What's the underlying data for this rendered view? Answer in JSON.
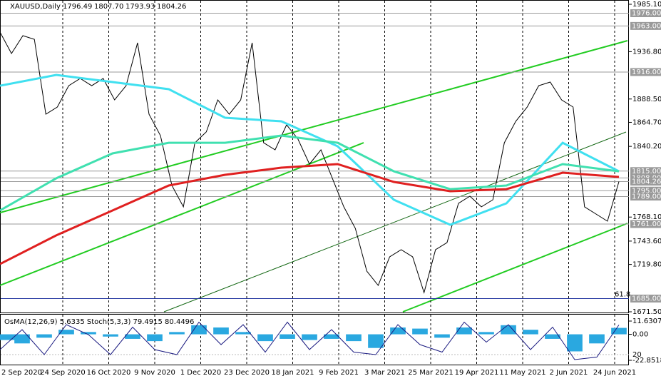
{
  "chart_data": [
    {
      "type": "line",
      "symbol": "XAUUSD,Daily",
      "ohlc": [
        {
          "value": 1796.49,
          "label": "1796.49"
        },
        {
          "value": 1807.7,
          "label": "1807.70"
        },
        {
          "value": 1793.93,
          "label": "1793.93"
        },
        {
          "value": 1804.26,
          "label": "1804.26"
        }
      ],
      "xtick_labels": [
        "2 Sep 2020",
        "24 Sep 2020",
        "16 Oct 2020",
        "9 Nov 2020",
        "1 Dec 2020",
        "23 Dec 2020",
        "18 Jan 2021",
        "9 Feb 2021",
        "3 Mar 2021",
        "25 Mar 2021",
        "19 Apr 2021",
        "11 May 2021",
        "2 Jun 2021",
        "24 Jun 2021"
      ],
      "series": [
        {
          "color": "#000000",
          "values": [
            1956.7,
            1934.9,
            1953.1,
            1949.4,
            1873.0,
            1880.3,
            1902.1,
            1909.4,
            1902.1,
            1909.4,
            1887.6,
            1902.1,
            1945.8,
            1873.0,
            1851.2,
            1800.3,
            1778.5,
            1843.9,
            1854.9,
            1887.6,
            1873.0,
            1887.6,
            1945.8,
            1843.9,
            1836.7,
            1862.1,
            1847.6,
            1822.1,
            1836.7,
            1807.6,
            1778.5,
            1756.6,
            1713.0,
            1698.4,
            1727.5,
            1734.8,
            1727.5,
            1691.1,
            1734.8,
            1742.1,
            1782.1,
            1789.4,
            1778.5,
            1785.7,
            1843.9,
            1865.8,
            1880.3,
            1902.1,
            1905.8,
            1887.6,
            1880.3,
            1778.5,
            1771.2,
            1763.9,
            1804.26
          ]
        },
        {
          "color": "#40e0f0",
          "values": [
            1902.1,
            1913.1,
            1905.8,
            1898.5,
            1869.4,
            1865.8,
            1840.3,
            1785.7,
            1760.3,
            1782.1,
            1843.9,
            1814.8
          ]
        },
        {
          "color": "#40e0b0",
          "values": [
            1774.8,
            1807.6,
            1833.0,
            1843.9,
            1843.9,
            1851.2,
            1843.9,
            1814.8,
            1796.6,
            1800.3,
            1822.1,
            1814.8
          ]
        },
        {
          "color": "#e02020",
          "values": [
            1720.2,
            1749.4,
            1774.8,
            1800.3,
            1811.2,
            1818.5,
            1822.1,
            1803.9,
            1794.5,
            1796.6,
            1813.4,
            1809.0
          ]
        }
      ],
      "ylim": [
        1671.5,
        1985.1
      ],
      "yticks": [
        {
          "value": 1985.1,
          "label": "1985.10"
        },
        {
          "value": 1936.8,
          "label": "1936.80"
        },
        {
          "value": 1888.5,
          "label": "1888.50"
        },
        {
          "value": 1864.7,
          "label": "1864.70"
        },
        {
          "value": 1840.2,
          "label": "1840.20"
        },
        {
          "value": 1768.1,
          "label": "1768.10"
        },
        {
          "value": 1743.6,
          "label": "1743.60"
        },
        {
          "value": 1719.8,
          "label": "1719.80"
        },
        {
          "value": 1671.5,
          "label": "1671.50"
        }
      ],
      "levels": [
        {
          "value": 1976,
          "label": "1976.00"
        },
        {
          "value": 1963,
          "label": "1963.00"
        },
        {
          "value": 1916,
          "label": "1916.00"
        },
        {
          "value": 1815,
          "label": "1815.00"
        },
        {
          "value": 1808,
          "label": "1808.00"
        },
        {
          "value": 1804.26,
          "label": "1804.26"
        },
        {
          "value": 1795,
          "label": "1795.00"
        },
        {
          "value": 1789,
          "label": "1789.00"
        },
        {
          "value": 1761,
          "label": "1761.00"
        },
        {
          "value": 1685,
          "label": "1685.00",
          "color": "#1c2f9c"
        }
      ],
      "level_note": "61.8"
    },
    {
      "type": "bar",
      "title": "OsMA(12,26,9) 5.6335 Stoch(5,3,3) 79.4915 80.4496",
      "series": [
        {
          "color": "#2aa8e0",
          "values": [
            -5,
            -8,
            -3,
            4,
            2,
            -2,
            -4,
            -6,
            2,
            8,
            6,
            2,
            -6,
            -4,
            -5,
            -4,
            -6,
            -12,
            6,
            5,
            -3,
            6,
            2,
            8,
            4,
            -4,
            -15,
            -8,
            5.6335
          ]
        },
        {
          "color": "#1a1a80",
          "axis": "y2",
          "values": [
            30,
            70,
            20,
            80,
            60,
            20,
            75,
            30,
            20,
            85,
            40,
            80,
            25,
            85,
            30,
            70,
            25,
            20,
            80,
            40,
            25,
            85,
            45,
            80,
            30,
            75,
            10,
            15,
            79.4915
          ]
        }
      ],
      "ylim": [
        -22.8518,
        11.6307
      ],
      "yticks": [
        {
          "value": 11.6307,
          "label": "11.6307"
        },
        {
          "value": 0,
          "label": "0.00"
        },
        {
          "value": -22.8518,
          "label": "-22.8518"
        }
      ],
      "y2lim": [
        0,
        100
      ],
      "y2ticks": [
        20
      ]
    }
  ]
}
